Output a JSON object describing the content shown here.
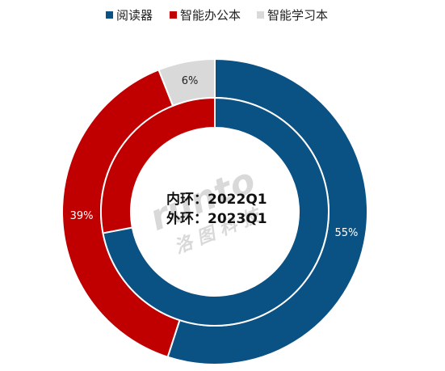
{
  "chart_data": {
    "type": "pie",
    "style": "double-donut",
    "legend_position": "top",
    "categories": [
      "阅读器",
      "智能办公本",
      "智能学习本"
    ],
    "colors": [
      "#0a5184",
      "#c00000",
      "#d9d9d9"
    ],
    "series": [
      {
        "ring": "inner",
        "values": [
          72,
          28,
          0
        ],
        "data_labels": [
          "",
          "",
          ""
        ]
      },
      {
        "ring": "outer",
        "values": [
          55,
          39,
          6
        ],
        "data_labels": [
          "55%",
          "39%",
          "6%"
        ]
      }
    ],
    "center_lines": [
      "内环：2022Q1",
      "外环：2023Q1"
    ],
    "watermark": {
      "brand": "runto",
      "chinese": "洛图科技"
    }
  }
}
